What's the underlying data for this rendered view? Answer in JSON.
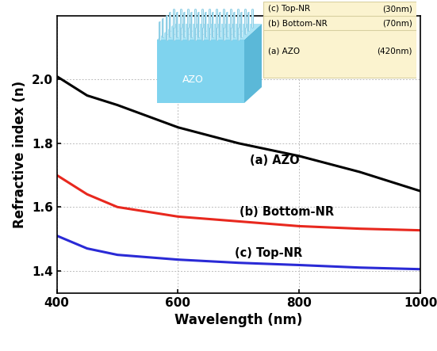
{
  "chart_data": {
    "type": "line",
    "x_label": "Wavelength (nm)",
    "y_label": "Refractive index (n)",
    "x": [
      400,
      450,
      500,
      600,
      700,
      800,
      900,
      1000
    ],
    "series": [
      {
        "name": "(a) AZO",
        "color": "#000000",
        "values": [
          2.01,
          1.95,
          1.92,
          1.85,
          1.8,
          1.76,
          1.71,
          1.65
        ]
      },
      {
        "name": "(b) Bottom-NR",
        "color": "#e8281e",
        "values": [
          1.7,
          1.64,
          1.6,
          1.57,
          1.555,
          1.54,
          1.532,
          1.527
        ]
      },
      {
        "name": "(c) Top-NR",
        "color": "#2a2ad6",
        "values": [
          1.51,
          1.47,
          1.45,
          1.435,
          1.425,
          1.418,
          1.41,
          1.405
        ]
      }
    ],
    "xlim": [
      400,
      1000
    ],
    "xticks": [
      400,
      600,
      800,
      1000
    ],
    "ylim": [
      1.33,
      2.2
    ],
    "yticks": [
      {
        "value": 1.4,
        "label": "1.4"
      },
      {
        "value": 1.6,
        "label": "1.6"
      },
      {
        "value": 1.8,
        "label": "1.8"
      },
      {
        "value": 2.0,
        "label": "2.0"
      }
    ],
    "grid": true,
    "inset": {
      "substrate_label": "AZO",
      "layers": [
        {
          "label": "(c) Top-NR",
          "thickness": "(30nm)"
        },
        {
          "label": "(b) Bottom-NR",
          "thickness": "(70nm)"
        },
        {
          "label": "(a) AZO",
          "thickness": "(420nm)"
        }
      ]
    }
  }
}
